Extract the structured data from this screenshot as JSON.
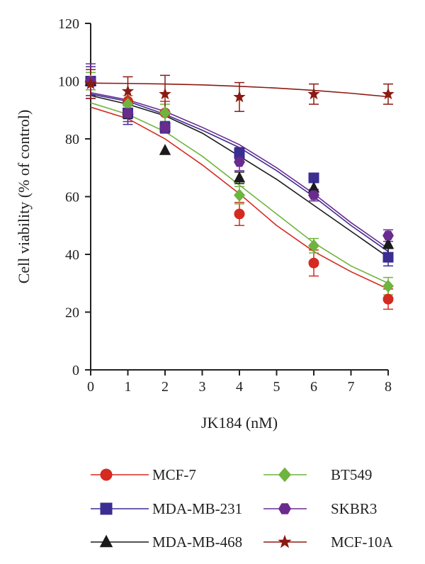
{
  "chart_data": {
    "type": "scatter",
    "xlabel": "JK184 (nM)",
    "ylabel": "Cell viability (% of control)",
    "xlim": [
      0,
      8
    ],
    "ylim": [
      0,
      120
    ],
    "xticks": [
      "0",
      "1",
      "2",
      "3",
      "4",
      "5",
      "6",
      "7",
      "8"
    ],
    "yticks": [
      "0",
      "20",
      "40",
      "60",
      "80",
      "100",
      "120"
    ],
    "grid": false,
    "legend_position": "bottom",
    "x": [
      0,
      1,
      2,
      4,
      6,
      8
    ],
    "series": [
      {
        "name": "MCF-7",
        "color": "#d52a1f",
        "marker": "circle",
        "values": [
          100,
          93,
          89,
          54,
          37,
          24.5
        ],
        "errors": [
          3,
          4,
          4,
          4,
          4.5,
          3.5
        ],
        "fit": [
          [
            0,
            91
          ],
          [
            1,
            87
          ],
          [
            2,
            80
          ],
          [
            3,
            71
          ],
          [
            4,
            61
          ],
          [
            5,
            50
          ],
          [
            6,
            41
          ],
          [
            7,
            34
          ],
          [
            8,
            28
          ]
        ]
      },
      {
        "name": "MDA-MB-231",
        "color": "#3b2d92",
        "marker": "square",
        "values": [
          100,
          89,
          84,
          75,
          66.5,
          39
        ],
        "errors": [
          5,
          4,
          2,
          2,
          1,
          3
        ],
        "fit": [
          [
            0,
            95.5
          ],
          [
            1,
            93
          ],
          [
            2,
            88.5
          ],
          [
            3,
            83
          ],
          [
            4,
            77
          ],
          [
            5,
            69
          ],
          [
            6,
            60
          ],
          [
            7,
            50
          ],
          [
            8,
            41
          ]
        ]
      },
      {
        "name": "MDA-MB-468",
        "color": "#1a1a1a",
        "marker": "triangle",
        "values": [
          100,
          90,
          76,
          66.5,
          63,
          43.5
        ],
        "errors": [
          3,
          3,
          0,
          2,
          2,
          3
        ],
        "fit": [
          [
            0,
            95
          ],
          [
            1,
            92
          ],
          [
            2,
            88
          ],
          [
            3,
            82
          ],
          [
            4,
            74
          ],
          [
            5,
            66
          ],
          [
            6,
            57
          ],
          [
            7,
            48
          ],
          [
            8,
            39
          ]
        ]
      },
      {
        "name": "BT549",
        "color": "#6fb43f",
        "marker": "diamond",
        "values": [
          100,
          92,
          89,
          60.5,
          43,
          29
        ],
        "errors": [
          3,
          3,
          3,
          3,
          2.5,
          3
        ],
        "fit": [
          [
            0,
            92.5
          ],
          [
            1,
            88.5
          ],
          [
            2,
            82.5
          ],
          [
            3,
            74
          ],
          [
            4,
            64
          ],
          [
            5,
            54
          ],
          [
            6,
            44
          ],
          [
            7,
            36
          ],
          [
            8,
            30
          ]
        ]
      },
      {
        "name": "SKBR3",
        "color": "#6a2b8f",
        "marker": "hexagon",
        "values": [
          100,
          89,
          84,
          72,
          60.5,
          46.5
        ],
        "errors": [
          6,
          3,
          2,
          3,
          2,
          2
        ],
        "fit": [
          [
            0,
            96
          ],
          [
            1,
            93.5
          ],
          [
            2,
            89.5
          ],
          [
            3,
            84
          ],
          [
            4,
            78
          ],
          [
            5,
            70
          ],
          [
            6,
            61
          ],
          [
            7,
            51
          ],
          [
            8,
            42
          ]
        ]
      },
      {
        "name": "MCF-10A",
        "color": "#8b1a12",
        "marker": "star",
        "values": [
          99,
          96.5,
          95.5,
          94.5,
          95.5,
          95.5
        ],
        "errors": [
          5,
          5,
          6.5,
          5,
          3.5,
          3.5
        ],
        "fit": [
          [
            0,
            99.3
          ],
          [
            1,
            99.2
          ],
          [
            2,
            99.0
          ],
          [
            3,
            98.7
          ],
          [
            4,
            98.2
          ],
          [
            5,
            97.6
          ],
          [
            6,
            96.8
          ],
          [
            7,
            95.8
          ],
          [
            8,
            94.6
          ]
        ]
      }
    ]
  }
}
